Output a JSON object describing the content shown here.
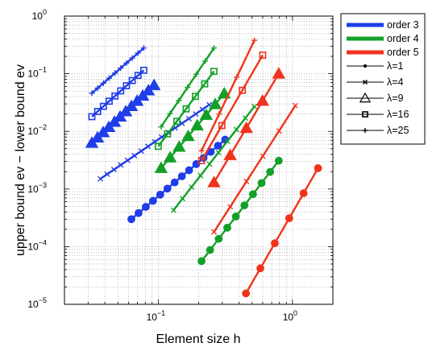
{
  "chart_data": {
    "type": "line",
    "title": "",
    "xlabel": "Element size h",
    "ylabel": "upper bound ev − lower bound ev",
    "xscale": "log",
    "yscale": "log",
    "xlim": [
      0.02,
      2
    ],
    "ylim": [
      1e-05,
      1
    ],
    "grid": true,
    "legend_position": "outside-top-right",
    "x_ticks": [
      {
        "base": "10",
        "exp": "−1",
        "value": 0.1
      },
      {
        "base": "10",
        "exp": "0",
        "value": 1
      }
    ],
    "y_ticks": [
      {
        "base": "10",
        "exp": "−5",
        "value": 1e-05
      },
      {
        "base": "10",
        "exp": "−4",
        "value": 0.0001
      },
      {
        "base": "10",
        "exp": "−3",
        "value": 0.001
      },
      {
        "base": "10",
        "exp": "−2",
        "value": 0.01
      },
      {
        "base": "10",
        "exp": "−1",
        "value": 0.1
      },
      {
        "base": "10",
        "exp": "0",
        "value": 1
      }
    ],
    "orders": [
      {
        "label": "order 3",
        "color": "#1f3de8"
      },
      {
        "label": "order 4",
        "color": "#13a028"
      },
      {
        "label": "order 5",
        "color": "#f0331c"
      }
    ],
    "markers": [
      {
        "label": "λ=1",
        "marker": "dot"
      },
      {
        "label": "λ=4",
        "marker": "x"
      },
      {
        "label": "λ=9",
        "marker": "triangle"
      },
      {
        "label": "λ=16",
        "marker": "square"
      },
      {
        "label": "λ=25",
        "marker": "plus"
      }
    ],
    "series": [
      {
        "order": 0,
        "marker": "dot",
        "x_range": [
          0.063,
          0.315
        ],
        "y_range": [
          0.0003,
          0.0072
        ],
        "points": 14
      },
      {
        "order": 0,
        "marker": "x",
        "x_range": [
          0.037,
          0.24
        ],
        "y_range": [
          0.0015,
          0.029
        ],
        "points": 17
      },
      {
        "order": 0,
        "marker": "triangle",
        "x_range": [
          0.032,
          0.093
        ],
        "y_range": [
          0.0063,
          0.063
        ],
        "points": 12
      },
      {
        "order": 0,
        "marker": "square",
        "x_range": [
          0.032,
          0.078
        ],
        "y_range": [
          0.018,
          0.115
        ],
        "points": 10
      },
      {
        "order": 0,
        "marker": "plus",
        "x_range": [
          0.032,
          0.078
        ],
        "y_range": [
          0.046,
          0.28
        ],
        "points": 10
      },
      {
        "order": 1,
        "marker": "dot",
        "x_range": [
          0.21,
          0.79
        ],
        "y_range": [
          5.6e-05,
          0.0031
        ],
        "points": 10
      },
      {
        "order": 1,
        "marker": "x",
        "x_range": [
          0.13,
          0.52
        ],
        "y_range": [
          0.00043,
          0.027
        ],
        "points": 10
      },
      {
        "order": 1,
        "marker": "triangle",
        "x_range": [
          0.105,
          0.31
        ],
        "y_range": [
          0.0023,
          0.045
        ],
        "points": 8
      },
      {
        "order": 1,
        "marker": "square",
        "x_range": [
          0.1,
          0.26
        ],
        "y_range": [
          0.0055,
          0.11
        ],
        "points": 7
      },
      {
        "order": 1,
        "marker": "plus",
        "x_range": [
          0.105,
          0.26
        ],
        "y_range": [
          0.012,
          0.28
        ],
        "points": 7
      },
      {
        "order": 2,
        "marker": "dot",
        "x_range": [
          0.45,
          1.55
        ],
        "y_range": [
          1.55e-05,
          0.0023
        ],
        "points": 6
      },
      {
        "order": 2,
        "marker": "x",
        "x_range": [
          0.26,
          1.05
        ],
        "y_range": [
          0.00018,
          0.028
        ],
        "points": 6
      },
      {
        "order": 2,
        "marker": "triangle",
        "x_range": [
          0.26,
          0.79
        ],
        "y_range": [
          0.0013,
          0.1
        ],
        "points": 5
      },
      {
        "order": 2,
        "marker": "square",
        "x_range": [
          0.21,
          0.6
        ],
        "y_range": [
          0.0031,
          0.21
        ],
        "points": 4
      },
      {
        "order": 2,
        "marker": "plus",
        "x_range": [
          0.21,
          0.52
        ],
        "y_range": [
          0.0046,
          0.38
        ],
        "points": 4
      }
    ]
  }
}
